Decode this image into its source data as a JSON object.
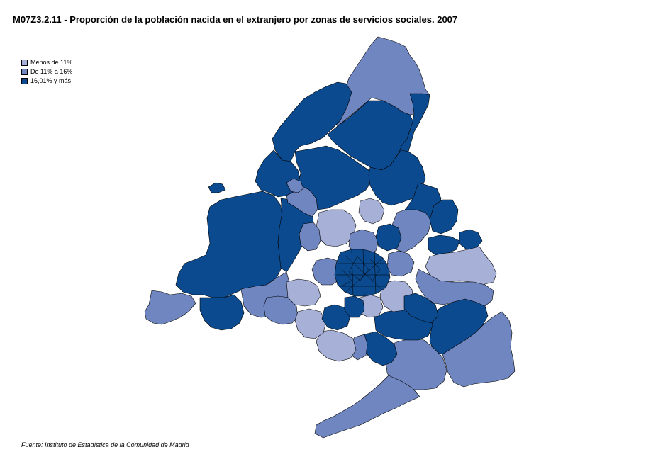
{
  "title": "M07Z3.2.11 - Proporción de la población nacida en el extranjero por zonas de servicios sociales. 2007",
  "source": "Fuente: Instituto de Estadística de la Comunidad de Madrid",
  "legend": [
    {
      "label": "Menos de 11%",
      "color": "#a7b1d7"
    },
    {
      "label": "De 11% a 16%",
      "color": "#7086c0"
    },
    {
      "label": "16,01% y más",
      "color": "#0b4a8e"
    }
  ],
  "colors": {
    "low": "#a7b1d7",
    "mid": "#7086c0",
    "high": "#0b4a8e"
  }
}
